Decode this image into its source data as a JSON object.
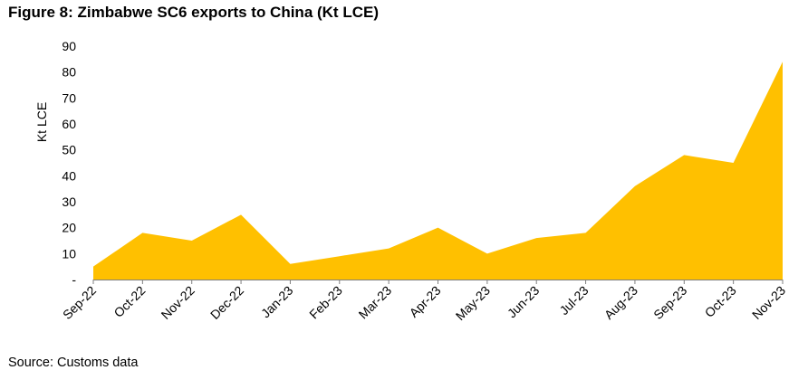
{
  "title": "Figure 8: Zimbabwe SC6 exports to China (Kt LCE)",
  "source": "Source: Customs data",
  "chart_data": {
    "type": "area",
    "title": "Figure 8: Zimbabwe SC6 exports to China (Kt LCE)",
    "xlabel": "",
    "ylabel": "Kt LCE",
    "categories": [
      "Sep-22",
      "Oct-22",
      "Nov-22",
      "Dec-22",
      "Jan-23",
      "Feb-23",
      "Mar-23",
      "Apr-23",
      "May-23",
      "Jun-23",
      "Jul-23",
      "Aug-23",
      "Sep-23",
      "Oct-23",
      "Nov-23"
    ],
    "series": [
      {
        "values": [
          5,
          18,
          15,
          25,
          6,
          9,
          12,
          20,
          10,
          16,
          18,
          36,
          48,
          45,
          84
        ]
      }
    ],
    "ylim": [
      0,
      90
    ],
    "yticks": [
      "-",
      "10",
      "20",
      "30",
      "40",
      "50",
      "60",
      "70",
      "80",
      "90"
    ],
    "grid": false,
    "color": "#FFC000"
  }
}
